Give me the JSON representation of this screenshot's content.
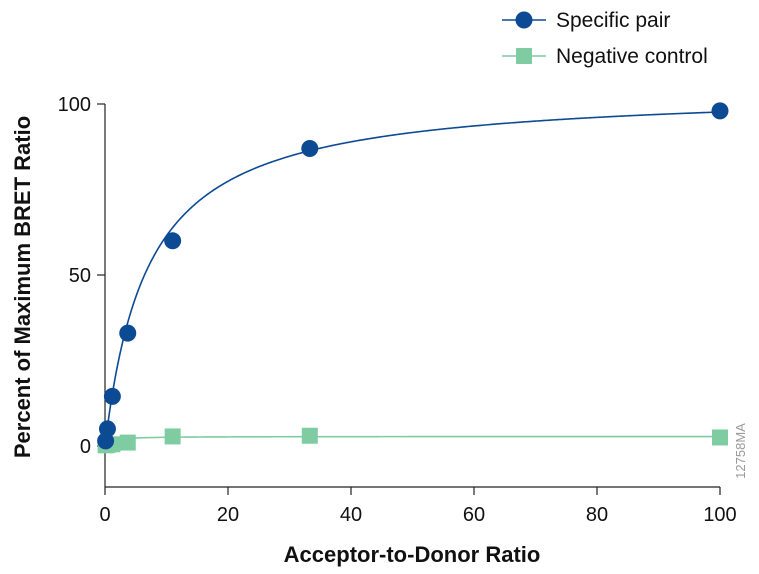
{
  "chart_data": {
    "type": "scatter",
    "xlabel": "Acceptor-to-Donor Ratio",
    "ylabel": "Percent of Maximum BRET Ratio",
    "xlim": [
      0,
      100
    ],
    "ylim": [
      -12,
      100
    ],
    "xticks": [
      0,
      20,
      40,
      60,
      80,
      100
    ],
    "yticks": [
      0,
      50,
      100
    ],
    "grid": false,
    "legend_position": "top-right",
    "series": [
      {
        "name": "Specific pair",
        "color": "#0d4a94",
        "marker": "circle",
        "points": [
          {
            "x": 0.1,
            "y": 1.5
          },
          {
            "x": 0.4,
            "y": 5
          },
          {
            "x": 1.2,
            "y": 14.5
          },
          {
            "x": 3.7,
            "y": 33
          },
          {
            "x": 11,
            "y": 60
          },
          {
            "x": 33.3,
            "y": 87
          },
          {
            "x": 100,
            "y": 98
          }
        ],
        "fit": {
          "model": "hyperbola",
          "bmax": 104.5,
          "kd": 7
        }
      },
      {
        "name": "Negative control",
        "color": "#7fcca3",
        "marker": "square",
        "points": [
          {
            "x": 0.1,
            "y": 0.2
          },
          {
            "x": 0.4,
            "y": 0.3
          },
          {
            "x": 1.2,
            "y": 0.5
          },
          {
            "x": 3.7,
            "y": 1
          },
          {
            "x": 11,
            "y": 2.8
          },
          {
            "x": 33.3,
            "y": 3
          },
          {
            "x": 100,
            "y": 2.5
          }
        ],
        "fit": {
          "model": "hyperbola",
          "bmax": 2.8,
          "kd": 1
        }
      }
    ]
  },
  "figure_code": "12758MA"
}
